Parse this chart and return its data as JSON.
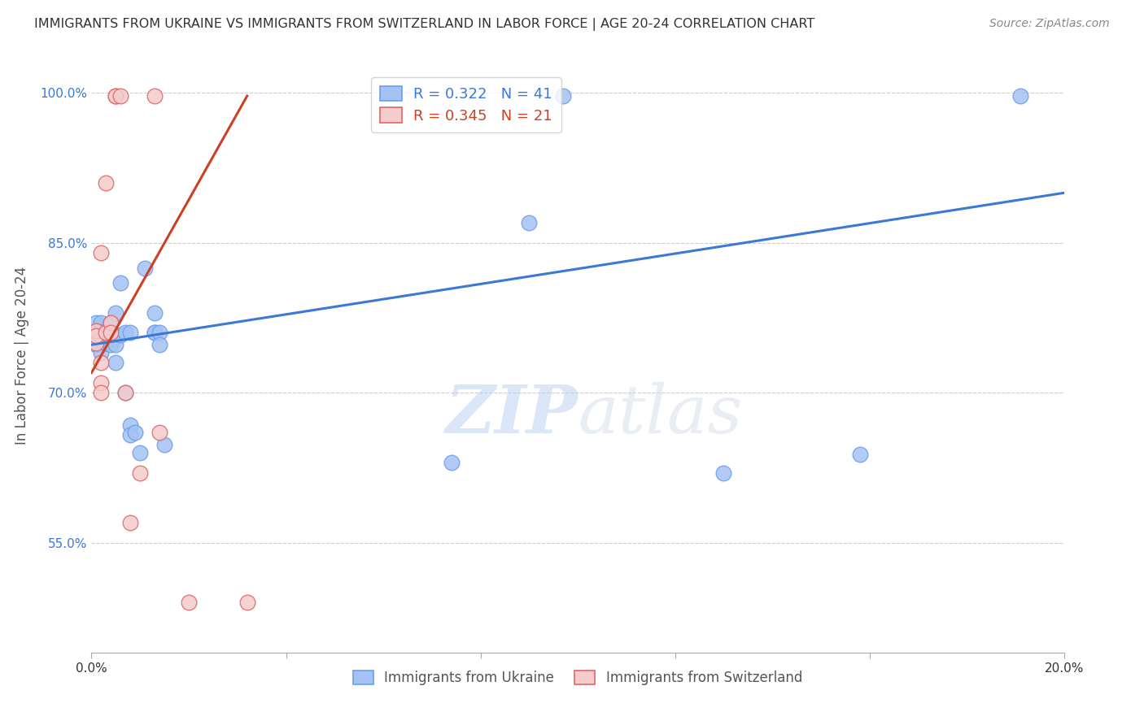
{
  "title": "IMMIGRANTS FROM UKRAINE VS IMMIGRANTS FROM SWITZERLAND IN LABOR FORCE | AGE 20-24 CORRELATION CHART",
  "source": "Source: ZipAtlas.com",
  "xlabel_label": "Immigrants from Ukraine",
  "ylabel_label": "In Labor Force | Age 20-24",
  "xlim": [
    0.0,
    0.2
  ],
  "ylim": [
    0.44,
    1.035
  ],
  "xticks": [
    0.0,
    0.04,
    0.08,
    0.12,
    0.16,
    0.2
  ],
  "yticks": [
    0.55,
    0.7,
    0.85,
    1.0
  ],
  "ytick_labels": [
    "55.0%",
    "70.0%",
    "85.0%",
    "100.0%"
  ],
  "xtick_labels": [
    "0.0%",
    "",
    "",
    "",
    "",
    "20.0%"
  ],
  "legend_blue_r": "0.322",
  "legend_blue_n": "41",
  "legend_pink_r": "0.345",
  "legend_pink_n": "21",
  "blue_color": "#a4c2f4",
  "pink_color": "#f4cccc",
  "blue_edge_color": "#6d9eeb",
  "pink_edge_color": "#e06666",
  "blue_line_color": "#3c78d8",
  "pink_line_color": "#cc4125",
  "watermark_color": "#c9daf8",
  "background_color": "#ffffff",
  "grid_color": "#cccccc",
  "blue_points": [
    [
      0.001,
      0.762
    ],
    [
      0.001,
      0.748
    ],
    [
      0.001,
      0.757
    ],
    [
      0.001,
      0.77
    ],
    [
      0.002,
      0.755
    ],
    [
      0.002,
      0.762
    ],
    [
      0.002,
      0.74
    ],
    [
      0.002,
      0.77
    ],
    [
      0.003,
      0.75
    ],
    [
      0.003,
      0.762
    ],
    [
      0.003,
      0.76
    ],
    [
      0.003,
      0.75
    ],
    [
      0.004,
      0.758
    ],
    [
      0.004,
      0.748
    ],
    [
      0.004,
      0.76
    ],
    [
      0.004,
      0.77
    ],
    [
      0.005,
      0.78
    ],
    [
      0.005,
      0.748
    ],
    [
      0.005,
      0.73
    ],
    [
      0.006,
      0.81
    ],
    [
      0.006,
      0.758
    ],
    [
      0.007,
      0.76
    ],
    [
      0.007,
      0.7
    ],
    [
      0.008,
      0.76
    ],
    [
      0.008,
      0.668
    ],
    [
      0.008,
      0.658
    ],
    [
      0.009,
      0.66
    ],
    [
      0.01,
      0.64
    ],
    [
      0.011,
      0.825
    ],
    [
      0.013,
      0.76
    ],
    [
      0.013,
      0.78
    ],
    [
      0.013,
      0.76
    ],
    [
      0.014,
      0.76
    ],
    [
      0.014,
      0.748
    ],
    [
      0.015,
      0.648
    ],
    [
      0.074,
      0.63
    ],
    [
      0.09,
      0.87
    ],
    [
      0.097,
      0.997
    ],
    [
      0.13,
      0.62
    ],
    [
      0.158,
      0.638
    ],
    [
      0.191,
      0.997
    ]
  ],
  "pink_points": [
    [
      0.001,
      0.75
    ],
    [
      0.001,
      0.762
    ],
    [
      0.001,
      0.757
    ],
    [
      0.002,
      0.84
    ],
    [
      0.002,
      0.73
    ],
    [
      0.002,
      0.71
    ],
    [
      0.002,
      0.7
    ],
    [
      0.003,
      0.91
    ],
    [
      0.003,
      0.76
    ],
    [
      0.004,
      0.77
    ],
    [
      0.004,
      0.76
    ],
    [
      0.005,
      0.997
    ],
    [
      0.005,
      0.997
    ],
    [
      0.006,
      0.997
    ],
    [
      0.007,
      0.7
    ],
    [
      0.008,
      0.57
    ],
    [
      0.01,
      0.62
    ],
    [
      0.013,
      0.997
    ],
    [
      0.014,
      0.66
    ],
    [
      0.02,
      0.49
    ],
    [
      0.032,
      0.49
    ]
  ],
  "blue_trendline_x": [
    0.0,
    0.2
  ],
  "blue_trendline_y": [
    0.748,
    0.9
  ],
  "pink_trendline_x": [
    0.0,
    0.032
  ],
  "pink_trendline_y": [
    0.72,
    0.997
  ]
}
